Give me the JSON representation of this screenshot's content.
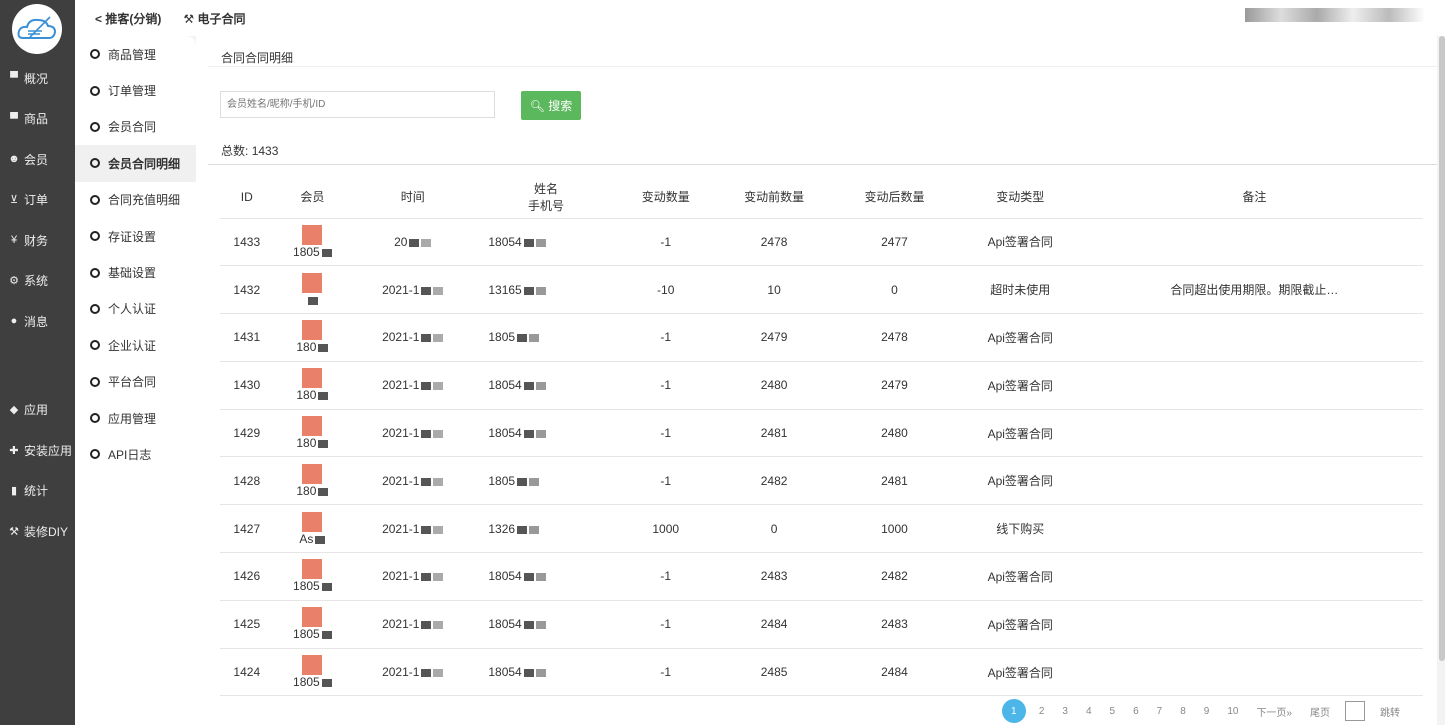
{
  "sidebar": {
    "items": [
      {
        "label": "概况",
        "icon": "archive-icon"
      },
      {
        "label": "商品",
        "icon": "archive-icon"
      },
      {
        "label": "会员",
        "icon": "users-icon"
      },
      {
        "label": "订单",
        "icon": "cart-icon"
      },
      {
        "label": "财务",
        "icon": "yen-icon"
      },
      {
        "label": "系统",
        "icon": "gears-icon"
      },
      {
        "label": "消息",
        "icon": "comment-icon"
      },
      {
        "label": "应用",
        "icon": "cubes-icon"
      },
      {
        "label": "安装应用",
        "icon": "puzzle-icon"
      },
      {
        "label": "统计",
        "icon": "bar-chart-icon"
      },
      {
        "label": "装修DIY",
        "icon": "gavel-icon"
      }
    ]
  },
  "topnav": {
    "items": [
      "推客(分销)",
      "电子合同"
    ]
  },
  "submenu": {
    "items": [
      "商品管理",
      "订单管理",
      "会员合同",
      "会员合同明细",
      "合同充值明细",
      "存证设置",
      "基础设置",
      "个人认证",
      "企业认证",
      "平台合同",
      "应用管理",
      "API日志"
    ],
    "active": 3
  },
  "main": {
    "breadcrumb": "合同合同明细",
    "search_placeholder": "会员姓名/昵称/手机/ID",
    "search_label": "搜索",
    "total_label": "总数:",
    "total": "1433"
  },
  "table": {
    "headers": [
      "ID",
      "会员",
      "时间",
      "姓名",
      "手机号",
      "变动数量",
      "变动前数量",
      "变动后数量",
      "变动类型",
      "备注"
    ],
    "rows": [
      [
        "1433",
        "1805",
        "20",
        "18054",
        "-1",
        "2478",
        "2477",
        "Api签署合同",
        ""
      ],
      [
        "1432",
        "",
        "2021-1",
        "13165",
        "-10",
        "10",
        "0",
        "超时未使用",
        "合同超出使用期限。期限截止…"
      ],
      [
        "1431",
        "180",
        "2021-1",
        "1805",
        "-1",
        "2479",
        "2478",
        "Api签署合同",
        ""
      ],
      [
        "1430",
        "180",
        "2021-1",
        "18054",
        "-1",
        "2480",
        "2479",
        "Api签署合同",
        ""
      ],
      [
        "1429",
        "180",
        "2021-1",
        "18054",
        "-1",
        "2481",
        "2480",
        "Api签署合同",
        ""
      ],
      [
        "1428",
        "180",
        "2021-1",
        "1805",
        "-1",
        "2482",
        "2481",
        "Api签署合同",
        ""
      ],
      [
        "1427",
        "As",
        "2021-1",
        "1326",
        "1000",
        "0",
        "1000",
        "线下购买",
        ""
      ],
      [
        "1426",
        "1805",
        "2021-1",
        "18054",
        "-1",
        "2483",
        "2482",
        "Api签署合同",
        ""
      ],
      [
        "1425",
        "1805",
        "2021-1",
        "18054",
        "-1",
        "2484",
        "2483",
        "Api签署合同",
        ""
      ],
      [
        "1424",
        "1805",
        "2021-1",
        "18054",
        "-1",
        "2485",
        "2484",
        "Api签署合同",
        ""
      ]
    ]
  },
  "pagination": {
    "pages": [
      "1",
      "2",
      "3",
      "4",
      "5",
      "6",
      "7",
      "8",
      "9",
      "10"
    ],
    "current": "1",
    "next": "下一页»",
    "last": "尾页",
    "jump": "跳转"
  },
  "colors": {
    "sidebar": "#3f3f3f",
    "search_button": "#5cb85c",
    "current_page": "#4db6e8"
  }
}
